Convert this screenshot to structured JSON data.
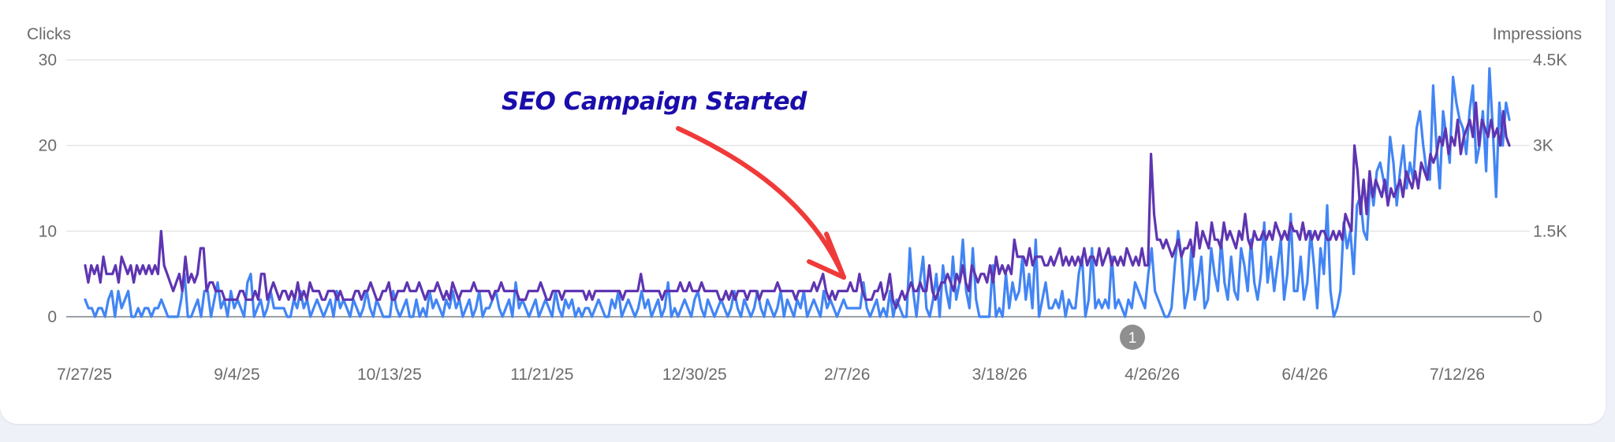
{
  "chart_data": {
    "type": "line",
    "left_axis_label": "Clicks",
    "right_axis_label": "Impressions",
    "left_ticks": [
      "0",
      "10",
      "20",
      "30"
    ],
    "right_ticks": [
      "0",
      "1.5K",
      "3K",
      "4.5K"
    ],
    "x_ticks": [
      "7/27/25",
      "9/4/25",
      "10/13/25",
      "11/21/25",
      "12/30/25",
      "2/7/26",
      "3/18/26",
      "4/26/26",
      "6/4/26",
      "7/12/26"
    ],
    "ylim_left": [
      0,
      30
    ],
    "ylim_right": [
      0,
      4500
    ],
    "grid": true,
    "series": [
      {
        "axis": "left",
        "color": "#4285f4",
        "values": [
          2,
          1,
          1,
          0,
          1,
          1,
          0,
          2,
          3,
          0,
          3,
          1,
          2,
          3,
          0,
          0,
          1,
          0,
          1,
          1,
          0,
          1,
          1,
          2,
          1,
          0,
          0,
          0,
          0,
          2,
          5,
          0,
          0,
          1,
          2,
          0,
          3,
          3,
          0,
          2,
          4,
          1,
          2,
          0,
          3,
          1,
          2,
          1,
          0,
          4,
          5,
          0,
          1,
          2,
          0,
          1,
          3,
          1,
          1,
          1,
          1,
          0,
          0,
          2,
          1,
          3,
          1,
          2,
          0,
          1,
          2,
          1,
          0,
          1,
          2,
          0,
          3,
          1,
          2,
          1,
          0,
          2,
          1,
          0,
          1,
          3,
          1,
          0,
          2,
          1,
          0,
          0,
          0,
          3,
          1,
          0,
          1,
          2,
          0,
          0,
          2,
          0,
          1,
          0,
          3,
          1,
          2,
          1,
          0,
          2,
          1,
          3,
          1,
          2,
          0,
          1,
          2,
          0,
          1,
          3,
          0,
          1,
          1,
          2,
          3,
          1,
          0,
          1,
          2,
          0,
          4,
          1,
          2,
          1,
          0,
          1,
          2,
          0,
          1,
          2,
          1,
          0,
          3,
          1,
          0,
          2,
          1,
          2,
          0,
          1,
          0,
          1,
          1,
          0,
          1,
          2,
          1,
          0,
          0,
          2,
          1,
          3,
          0,
          1,
          2,
          1,
          0,
          1,
          3,
          1,
          2,
          0,
          1,
          2,
          0,
          1,
          4,
          0,
          1,
          0,
          1,
          2,
          1,
          0,
          2,
          3,
          1,
          0,
          2,
          1,
          0,
          1,
          2,
          1,
          0,
          1,
          3,
          1,
          0,
          2,
          1,
          0,
          1,
          3,
          1,
          0,
          2,
          1,
          0,
          1,
          3,
          0,
          2,
          1,
          0,
          2,
          1,
          3,
          0,
          1,
          2,
          1,
          0,
          3,
          1,
          2,
          1,
          0,
          1,
          2,
          1,
          1,
          1,
          1,
          1,
          4,
          1,
          0,
          1,
          2,
          0,
          1,
          0,
          3,
          0,
          2,
          1,
          0,
          0,
          8,
          3,
          0,
          4,
          7,
          1,
          0,
          2,
          5,
          0,
          6,
          3,
          1,
          7,
          2,
          4,
          9,
          3,
          1,
          8,
          2,
          0,
          0,
          0,
          0,
          6,
          0,
          1,
          0,
          5,
          1,
          4,
          2,
          3,
          7,
          2,
          5,
          1,
          9,
          0,
          2,
          4,
          1,
          1,
          2,
          1,
          3,
          0,
          2,
          1,
          1,
          5,
          7,
          0,
          2,
          8,
          1,
          2,
          1,
          2,
          1,
          7,
          1,
          2,
          1,
          0,
          2,
          1,
          4,
          3,
          2,
          1,
          5,
          8,
          3,
          2,
          1,
          0,
          0,
          1,
          6,
          10,
          7,
          1,
          3,
          8,
          2,
          4,
          7,
          1,
          2,
          8,
          5,
          3,
          9,
          4,
          2,
          7,
          3,
          2,
          8,
          6,
          3,
          9,
          4,
          2,
          5,
          11,
          4,
          7,
          3,
          6,
          9,
          2,
          5,
          12,
          3,
          3,
          7,
          2,
          4,
          10,
          6,
          1,
          8,
          5,
          13,
          3,
          0,
          1,
          3,
          11,
          8,
          10,
          5,
          13,
          14,
          10,
          9,
          16,
          13,
          17,
          18,
          16,
          14,
          21,
          18,
          13,
          17,
          20,
          15,
          18,
          16,
          22,
          24,
          20,
          17,
          16,
          27,
          20,
          15,
          24,
          21,
          18,
          28,
          25,
          23,
          22,
          19,
          24,
          27,
          18,
          20,
          24,
          17,
          29,
          22,
          14,
          25,
          20,
          25,
          23
        ]
      },
      {
        "axis": "left",
        "color": "#5e35b1",
        "values": [
          6,
          4,
          6,
          5,
          6,
          4,
          7,
          5,
          5,
          5,
          6,
          4,
          7,
          6,
          5,
          6,
          4,
          6,
          5,
          6,
          5,
          6,
          5,
          6,
          5,
          10,
          6,
          5,
          4,
          3,
          4,
          5,
          3,
          7,
          4,
          5,
          4,
          5,
          8,
          8,
          3,
          4,
          4,
          3,
          3,
          3,
          2,
          2,
          2,
          2,
          2,
          3,
          3,
          2,
          2,
          2,
          3,
          2,
          5,
          5,
          2,
          3,
          4,
          3,
          2,
          3,
          3,
          2,
          3,
          2,
          4,
          2,
          3,
          2,
          4,
          3,
          3,
          3,
          2,
          2,
          3,
          3,
          3,
          2,
          3,
          2,
          2,
          2,
          2,
          3,
          3,
          2,
          3,
          3,
          4,
          3,
          2,
          2,
          3,
          3,
          4,
          2,
          2,
          3,
          3,
          3,
          4,
          3,
          3,
          3,
          4,
          3,
          2,
          3,
          3,
          3,
          4,
          3,
          2,
          3,
          2,
          4,
          3,
          2,
          3,
          3,
          3,
          3,
          4,
          3,
          3,
          3,
          3,
          3,
          2,
          3,
          3,
          4,
          3,
          3,
          3,
          3,
          3,
          2,
          2,
          2,
          3,
          3,
          3,
          3,
          4,
          3,
          2,
          2,
          3,
          3,
          3,
          2,
          3,
          3,
          3,
          3,
          3,
          3,
          3,
          2,
          3,
          2,
          3,
          3,
          3,
          3,
          3,
          3,
          3,
          3,
          3,
          2,
          3,
          3,
          3,
          3,
          3,
          5,
          3,
          3,
          3,
          3,
          3,
          3,
          2,
          3,
          3,
          3,
          3,
          3,
          4,
          3,
          3,
          4,
          3,
          3,
          3,
          4,
          3,
          3,
          3,
          3,
          3,
          2,
          2,
          3,
          2,
          3,
          2,
          3,
          3,
          3,
          2,
          3,
          3,
          3,
          2,
          3,
          3,
          3,
          3,
          3,
          4,
          3,
          3,
          3,
          3,
          3,
          2,
          3,
          3,
          3,
          3,
          3,
          4,
          3,
          4,
          5,
          3,
          2,
          3,
          2,
          3,
          3,
          3,
          3,
          4,
          3,
          3,
          5,
          3,
          2,
          2,
          2,
          3,
          3,
          4,
          2,
          3,
          5,
          2,
          1,
          2,
          3,
          2,
          3,
          4,
          3,
          3,
          4,
          3,
          3,
          6,
          3,
          2,
          3,
          4,
          4,
          5,
          4,
          3,
          5,
          4,
          6,
          4,
          3,
          6,
          5,
          4,
          5,
          5,
          4,
          6,
          4,
          7,
          5,
          6,
          5,
          6,
          5,
          9,
          7,
          7,
          7,
          6,
          8,
          6,
          7,
          7,
          7,
          6,
          6,
          7,
          6,
          7,
          8,
          6,
          7,
          6,
          7,
          6,
          7,
          6,
          8,
          6,
          7,
          7,
          6,
          8,
          6,
          7,
          8,
          6,
          7,
          6,
          7,
          6,
          8,
          7,
          6,
          7,
          6,
          8,
          6,
          6,
          19,
          12,
          9,
          9,
          8,
          9,
          8,
          7,
          8,
          9,
          7,
          8,
          8,
          9,
          7,
          11,
          8,
          10,
          9,
          8,
          11,
          9,
          9,
          8,
          11,
          9,
          10,
          9,
          8,
          10,
          9,
          12,
          9,
          8,
          10,
          9,
          9,
          10,
          9,
          10,
          9,
          11,
          10,
          9,
          10,
          9,
          11,
          10,
          10,
          9,
          11,
          9,
          10,
          9,
          10,
          9,
          10,
          10,
          9,
          9,
          10,
          9,
          10,
          9,
          12,
          11,
          10,
          20,
          17,
          12,
          16,
          12,
          17,
          14,
          16,
          15,
          14,
          16,
          13,
          15,
          14,
          15,
          16,
          14,
          17,
          16,
          15,
          17,
          15,
          18,
          17,
          16,
          19,
          18,
          19,
          21,
          20,
          22,
          19,
          21,
          20,
          23,
          19,
          21,
          22,
          23,
          21,
          25,
          20,
          23,
          22,
          21,
          23,
          21,
          22,
          20,
          24,
          21,
          20
        ]
      }
    ],
    "annotation": {
      "text": "SEO Campaign Started",
      "text_color": "#1a0dab",
      "arrow_color": "#f03a3a"
    },
    "marker": {
      "label": "1",
      "color": "#8f8f8f"
    }
  }
}
